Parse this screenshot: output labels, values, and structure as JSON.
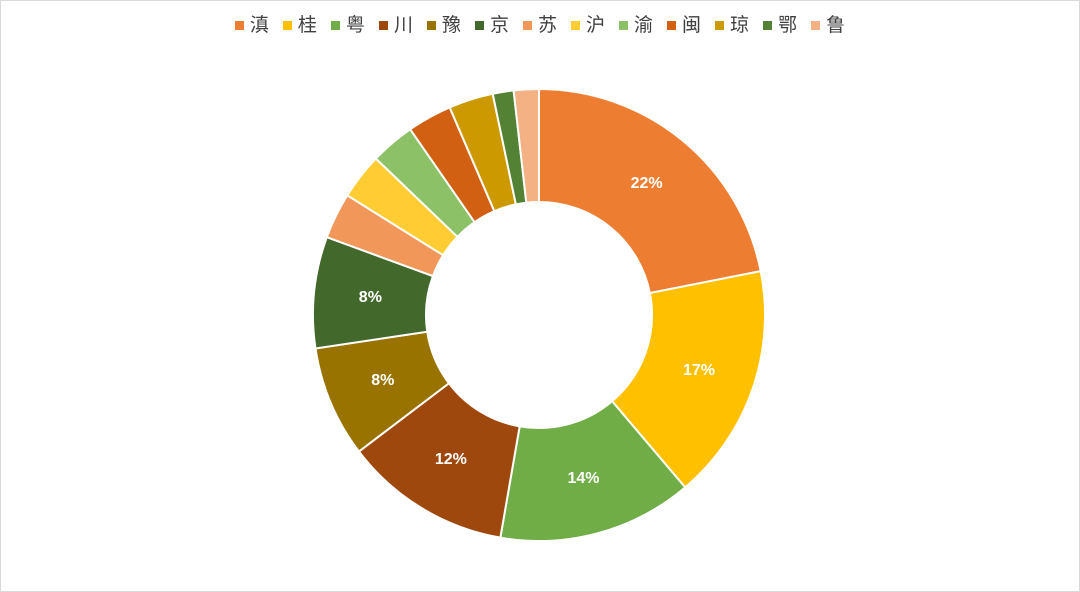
{
  "chart_data": {
    "type": "pie",
    "variant": "donut",
    "legend_position": "top",
    "categories": [
      "滇",
      "桂",
      "粤",
      "川",
      "豫",
      "京",
      "苏",
      "沪",
      "渝",
      "闽",
      "琼",
      "鄂",
      "鲁"
    ],
    "values": [
      22,
      17,
      14,
      12,
      8,
      8,
      3.3,
      3.3,
      3.2,
      3.2,
      3.2,
      1.5,
      1.8
    ],
    "data_labels": [
      "22%",
      "17%",
      "14%",
      "12%",
      "8%",
      "8%",
      "",
      "",
      "",
      "",
      "",
      "",
      ""
    ],
    "colors": [
      "#ED7D31",
      "#FFC000",
      "#70AD47",
      "#9E480E",
      "#997300",
      "#43682B",
      "#F1975A",
      "#FFCD33",
      "#8CC168",
      "#D26012",
      "#CC9A00",
      "#548235",
      "#F4B183"
    ]
  }
}
